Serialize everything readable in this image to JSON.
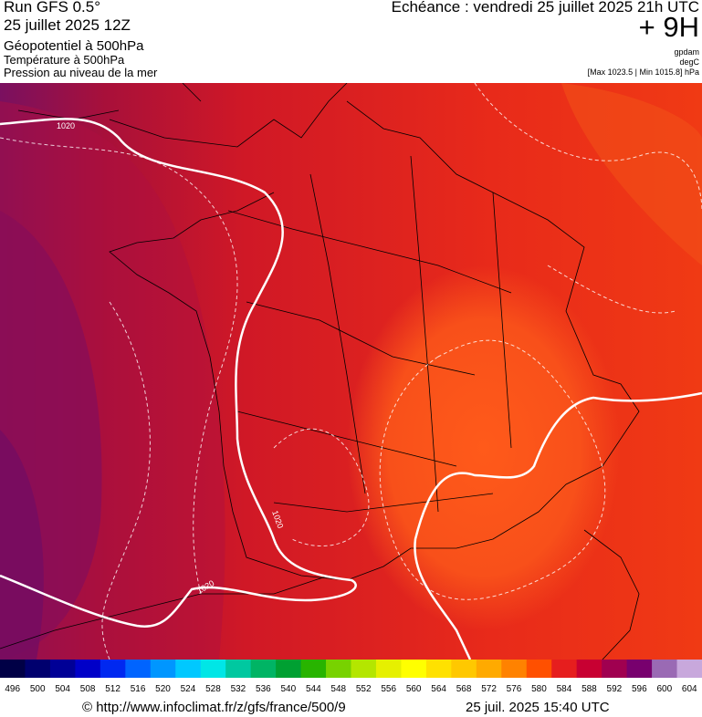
{
  "header": {
    "run": "Run GFS 0.5°",
    "date": "25 juillet 2025 12Z",
    "fields": [
      "Géopotentiel à 500hPa",
      "Température à 500hPa",
      "Pression au niveau de la mer"
    ],
    "echeance": "Echéance : vendredi 25 juillet 2025 21h UTC",
    "offset": "+ 9H",
    "units": [
      "gpdam",
      "degC"
    ],
    "pressure_range": "[Max 1023.5 | Min 1015.8] hPa"
  },
  "map": {
    "isobar_labels": [
      "1020",
      "1020",
      "1020"
    ]
  },
  "scale": {
    "labels": [
      496,
      500,
      504,
      508,
      512,
      516,
      520,
      524,
      528,
      532,
      536,
      540,
      544,
      548,
      552,
      556,
      560,
      564,
      568,
      572,
      576,
      580,
      584,
      588,
      592,
      596,
      600,
      604
    ],
    "colors": [
      "#000046",
      "#00006e",
      "#000096",
      "#0000c8",
      "#0028f0",
      "#0064ff",
      "#0096ff",
      "#00c8ff",
      "#00e6e6",
      "#00c8a0",
      "#00b464",
      "#00a032",
      "#28b400",
      "#78d200",
      "#b4e600",
      "#e6f000",
      "#ffff00",
      "#ffe100",
      "#ffc800",
      "#ffaa00",
      "#ff8200",
      "#ff5000",
      "#e61e1e",
      "#c80032",
      "#a00050",
      "#78006e",
      "#9a6ab4",
      "#c8a8dc"
    ]
  },
  "footer": {
    "source": "© http://www.infoclimat.fr/z/gfs/france/500/9",
    "timestamp": "25 juil. 2025 15:40 UTC"
  }
}
